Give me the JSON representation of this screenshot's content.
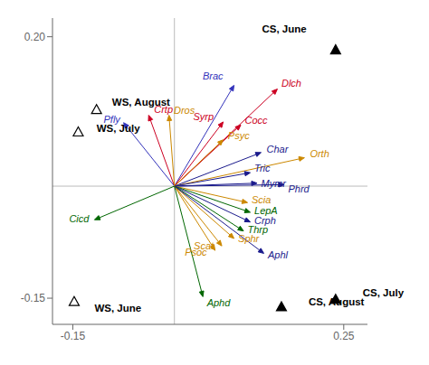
{
  "chart_data": {
    "type": "scatter",
    "xlim": [
      -0.18,
      0.285
    ],
    "xticks": [
      -0.15,
      0.25
    ],
    "ylim": [
      -0.185,
      0.225
    ],
    "yticks": [
      -0.15,
      {
        "value": 0.2,
        "label": "0.20"
      }
    ],
    "origin": [
      0,
      0
    ],
    "sites": [
      {
        "label": "CS, June",
        "x": 0.238,
        "y": 0.182,
        "label_x": 0.195,
        "label_y": 0.21,
        "marker": "triangle",
        "color": "#000000"
      },
      {
        "label": "CS, July",
        "x": 0.238,
        "y": -0.152,
        "label_x": 0.278,
        "label_y": -0.143,
        "marker": "triangle",
        "color": "#000000"
      },
      {
        "label": "CS, August",
        "x": 0.158,
        "y": -0.162,
        "label_x": 0.198,
        "label_y": -0.155,
        "marker": "triangle",
        "color": "#000000"
      },
      {
        "label": "WS, August",
        "x": -0.115,
        "y": 0.102,
        "label_x": -0.092,
        "label_y": 0.112,
        "marker": "triangle-open",
        "color": "#000000"
      },
      {
        "label": "WS, July",
        "x": -0.142,
        "y": 0.072,
        "label_x": -0.115,
        "label_y": 0.078,
        "marker": "triangle-open",
        "color": "#000000"
      },
      {
        "label": "WS, June",
        "x": -0.148,
        "y": -0.155,
        "label_x": -0.118,
        "label_y": -0.163,
        "marker": "triangle-open",
        "color": "#000000"
      }
    ],
    "arrows": [
      {
        "name": "Brac",
        "x": 0.088,
        "y": 0.135,
        "color": "#3333bb",
        "label_x": 0.072,
        "label_y": 0.148
      },
      {
        "name": "Dlch",
        "x": 0.152,
        "y": 0.13,
        "color": "#cc0022",
        "label_x": 0.158,
        "label_y": 0.138
      },
      {
        "name": "Syrp",
        "x": 0.072,
        "y": 0.086,
        "color": "#cc0022",
        "label_x": 0.058,
        "label_y": 0.093
      },
      {
        "name": "Cocc",
        "x": 0.098,
        "y": 0.082,
        "color": "#cc0022",
        "label_x": 0.104,
        "label_y": 0.088
      },
      {
        "name": "Psyc",
        "x": 0.072,
        "y": 0.062,
        "color": "#cc8800",
        "label_x": 0.079,
        "label_y": 0.068
      },
      {
        "name": "Char",
        "x": 0.128,
        "y": 0.045,
        "color": "#1a1a8c",
        "label_x": 0.136,
        "label_y": 0.05
      },
      {
        "name": "Orth",
        "x": 0.192,
        "y": 0.038,
        "color": "#cc8800",
        "label_x": 0.2,
        "label_y": 0.044
      },
      {
        "name": "Tric",
        "x": 0.112,
        "y": 0.018,
        "color": "#1a1a8c",
        "label_x": 0.118,
        "label_y": 0.024
      },
      {
        "name": "Mymr",
        "x": 0.122,
        "y": 0.004,
        "color": "#1a1a8c",
        "label_x": 0.128,
        "label_y": 0.004
      },
      {
        "name": "Phrd",
        "x": 0.162,
        "y": 0.002,
        "color": "#1a1a8c",
        "label_x": 0.168,
        "label_y": -0.004
      },
      {
        "name": "Scia",
        "x": 0.108,
        "y": -0.022,
        "color": "#cc8800",
        "label_x": 0.114,
        "label_y": -0.018
      },
      {
        "name": "LepA",
        "x": 0.112,
        "y": -0.035,
        "color": "#006600",
        "label_x": 0.118,
        "label_y": -0.033
      },
      {
        "name": "Crph",
        "x": 0.112,
        "y": -0.048,
        "color": "#1a1a8c",
        "label_x": 0.118,
        "label_y": -0.046
      },
      {
        "name": "Thrp",
        "x": 0.102,
        "y": -0.06,
        "color": "#006600",
        "label_x": 0.108,
        "label_y": -0.058
      },
      {
        "name": "Sphr",
        "x": 0.088,
        "y": -0.07,
        "color": "#cc8800",
        "label_x": 0.094,
        "label_y": -0.07
      },
      {
        "name": "Scat",
        "x": 0.07,
        "y": -0.08,
        "color": "#cc8800",
        "label_x": 0.058,
        "label_y": -0.08
      },
      {
        "name": "Psoc",
        "x": 0.06,
        "y": -0.086,
        "color": "#cc8800",
        "label_x": 0.048,
        "label_y": -0.088
      },
      {
        "name": "Aphl",
        "x": 0.132,
        "y": -0.09,
        "color": "#1a1a8c",
        "label_x": 0.138,
        "label_y": -0.092
      },
      {
        "name": "Aphd",
        "x": 0.042,
        "y": -0.148,
        "color": "#006600",
        "label_x": 0.048,
        "label_y": -0.156
      },
      {
        "name": "Cicd",
        "x": -0.118,
        "y": -0.045,
        "color": "#006600",
        "label_x": -0.126,
        "label_y": -0.043
      },
      {
        "name": "Crtp",
        "x": -0.038,
        "y": 0.095,
        "color": "#cc0022",
        "label_x": -0.03,
        "label_y": 0.103
      },
      {
        "name": "Pfly",
        "x": -0.075,
        "y": 0.085,
        "color": "#3333bb",
        "label_x": -0.08,
        "label_y": 0.09
      },
      {
        "name": "Dros",
        "x": -0.008,
        "y": 0.095,
        "color": "#cc8800",
        "label_x": -0.001,
        "label_y": 0.102
      }
    ]
  }
}
